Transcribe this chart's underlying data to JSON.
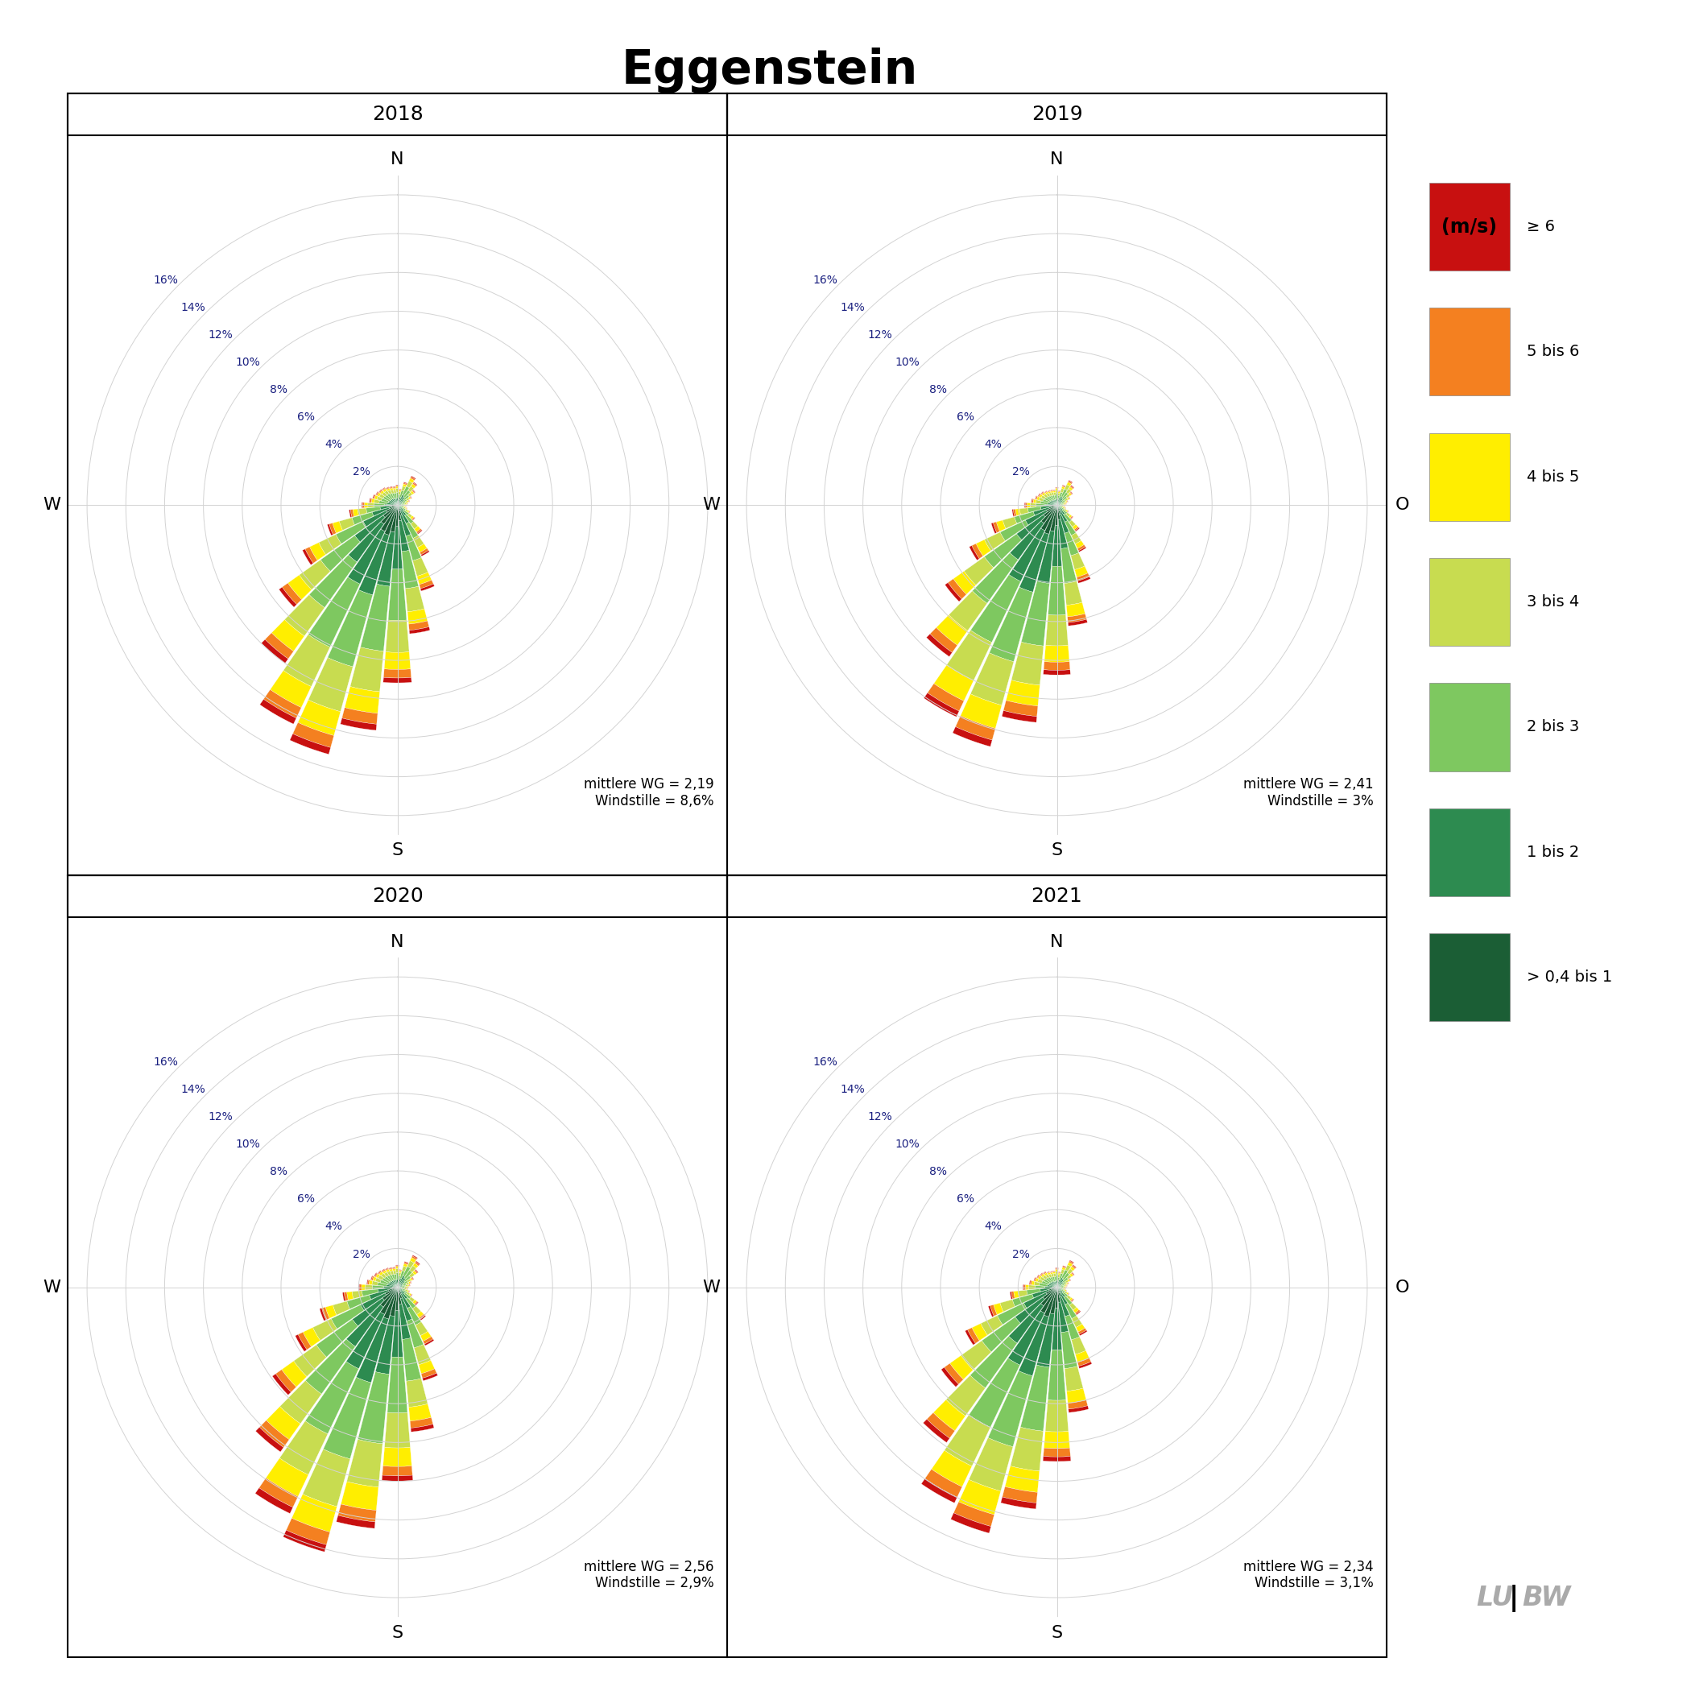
{
  "title": "Eggenstein",
  "years": [
    "2018",
    "2019",
    "2020",
    "2021"
  ],
  "stats": [
    {
      "mittlere_wg": "2,19",
      "windstille": "8,6%"
    },
    {
      "mittlere_wg": "2,41",
      "windstille": "3%"
    },
    {
      "mittlere_wg": "2,56",
      "windstille": "2,9%"
    },
    {
      "mittlere_wg": "2,34",
      "windstille": "3,1%"
    }
  ],
  "speed_colors": [
    "#1b5e35",
    "#2d8b50",
    "#7ec860",
    "#c8dc50",
    "#ffee00",
    "#f48020",
    "#c81010"
  ],
  "speed_labels": [
    "> 0,4 bis 1",
    "1 bis 2",
    "2 bis 3",
    "3 bis 4",
    "4 bis 5",
    "5 bis 6",
    "≥ 6"
  ],
  "r_ticks": [
    2,
    4,
    6,
    8,
    10,
    12,
    14,
    16
  ],
  "r_max": 17,
  "n_sectors": 36,
  "n_speed_bins": 7,
  "wind_data_2018": [
    [
      0.12,
      0.25,
      0.3,
      0.2,
      0.1,
      0.05,
      0.03
    ],
    [
      0.1,
      0.2,
      0.25,
      0.15,
      0.08,
      0.04,
      0.02
    ],
    [
      0.15,
      0.3,
      0.35,
      0.22,
      0.12,
      0.06,
      0.04
    ],
    [
      0.2,
      0.4,
      0.48,
      0.3,
      0.16,
      0.08,
      0.05
    ],
    [
      0.18,
      0.35,
      0.42,
      0.26,
      0.14,
      0.07,
      0.04
    ],
    [
      0.14,
      0.28,
      0.33,
      0.2,
      0.11,
      0.05,
      0.03
    ],
    [
      0.1,
      0.2,
      0.24,
      0.15,
      0.08,
      0.04,
      0.02
    ],
    [
      0.08,
      0.16,
      0.19,
      0.12,
      0.06,
      0.03,
      0.02
    ],
    [
      0.07,
      0.14,
      0.16,
      0.1,
      0.05,
      0.02,
      0.01
    ],
    [
      0.06,
      0.12,
      0.14,
      0.09,
      0.05,
      0.02,
      0.01
    ],
    [
      0.06,
      0.11,
      0.13,
      0.08,
      0.04,
      0.02,
      0.01
    ],
    [
      0.07,
      0.13,
      0.15,
      0.1,
      0.05,
      0.02,
      0.01
    ],
    [
      0.09,
      0.18,
      0.21,
      0.13,
      0.07,
      0.03,
      0.02
    ],
    [
      0.14,
      0.27,
      0.32,
      0.2,
      0.11,
      0.05,
      0.03
    ],
    [
      0.22,
      0.44,
      0.52,
      0.33,
      0.18,
      0.09,
      0.05
    ],
    [
      0.35,
      0.7,
      0.84,
      0.52,
      0.28,
      0.14,
      0.08
    ],
    [
      0.55,
      1.1,
      1.32,
      0.83,
      0.44,
      0.22,
      0.13
    ],
    [
      0.8,
      1.6,
      1.92,
      1.2,
      0.64,
      0.32,
      0.18
    ],
    [
      1.1,
      2.2,
      2.64,
      1.65,
      0.88,
      0.44,
      0.25
    ],
    [
      1.4,
      2.8,
      3.36,
      2.1,
      1.12,
      0.56,
      0.32
    ],
    [
      1.6,
      3.2,
      3.84,
      2.4,
      1.28,
      0.64,
      0.36
    ],
    [
      1.5,
      3.0,
      3.6,
      2.25,
      1.2,
      0.6,
      0.34
    ],
    [
      1.2,
      2.4,
      2.88,
      1.8,
      0.96,
      0.48,
      0.27
    ],
    [
      0.9,
      1.8,
      2.16,
      1.35,
      0.72,
      0.36,
      0.2
    ],
    [
      0.65,
      1.3,
      1.56,
      0.98,
      0.52,
      0.26,
      0.15
    ],
    [
      0.45,
      0.9,
      1.08,
      0.68,
      0.36,
      0.18,
      0.1
    ],
    [
      0.3,
      0.6,
      0.72,
      0.45,
      0.24,
      0.12,
      0.07
    ],
    [
      0.22,
      0.44,
      0.53,
      0.33,
      0.18,
      0.09,
      0.05
    ],
    [
      0.18,
      0.35,
      0.42,
      0.26,
      0.14,
      0.07,
      0.04
    ],
    [
      0.16,
      0.32,
      0.38,
      0.24,
      0.13,
      0.06,
      0.04
    ],
    [
      0.15,
      0.3,
      0.36,
      0.22,
      0.12,
      0.06,
      0.03
    ],
    [
      0.14,
      0.28,
      0.34,
      0.21,
      0.11,
      0.06,
      0.03
    ],
    [
      0.14,
      0.27,
      0.33,
      0.2,
      0.11,
      0.05,
      0.03
    ],
    [
      0.13,
      0.25,
      0.3,
      0.19,
      0.1,
      0.05,
      0.03
    ],
    [
      0.12,
      0.24,
      0.29,
      0.18,
      0.1,
      0.05,
      0.03
    ],
    [
      0.12,
      0.23,
      0.28,
      0.17,
      0.09,
      0.05,
      0.03
    ]
  ],
  "wind_data_2019": [
    [
      0.1,
      0.22,
      0.28,
      0.18,
      0.09,
      0.04,
      0.02
    ],
    [
      0.09,
      0.18,
      0.22,
      0.14,
      0.07,
      0.04,
      0.02
    ],
    [
      0.12,
      0.26,
      0.32,
      0.2,
      0.1,
      0.05,
      0.03
    ],
    [
      0.16,
      0.34,
      0.42,
      0.26,
      0.14,
      0.07,
      0.04
    ],
    [
      0.15,
      0.3,
      0.37,
      0.23,
      0.12,
      0.06,
      0.04
    ],
    [
      0.12,
      0.24,
      0.29,
      0.18,
      0.1,
      0.05,
      0.03
    ],
    [
      0.09,
      0.18,
      0.22,
      0.14,
      0.07,
      0.04,
      0.02
    ],
    [
      0.07,
      0.14,
      0.17,
      0.11,
      0.06,
      0.03,
      0.02
    ],
    [
      0.06,
      0.12,
      0.15,
      0.09,
      0.05,
      0.02,
      0.01
    ],
    [
      0.05,
      0.11,
      0.13,
      0.08,
      0.04,
      0.02,
      0.01
    ],
    [
      0.05,
      0.1,
      0.12,
      0.08,
      0.04,
      0.02,
      0.01
    ],
    [
      0.06,
      0.12,
      0.14,
      0.09,
      0.05,
      0.02,
      0.01
    ],
    [
      0.08,
      0.16,
      0.2,
      0.12,
      0.07,
      0.03,
      0.02
    ],
    [
      0.12,
      0.24,
      0.3,
      0.19,
      0.1,
      0.05,
      0.03
    ],
    [
      0.2,
      0.4,
      0.48,
      0.3,
      0.16,
      0.08,
      0.05
    ],
    [
      0.32,
      0.64,
      0.77,
      0.48,
      0.26,
      0.13,
      0.07
    ],
    [
      0.5,
      1.0,
      1.2,
      0.75,
      0.4,
      0.2,
      0.12
    ],
    [
      0.75,
      1.5,
      1.8,
      1.13,
      0.6,
      0.3,
      0.17
    ],
    [
      1.05,
      2.1,
      2.52,
      1.58,
      0.84,
      0.42,
      0.24
    ],
    [
      1.35,
      2.7,
      3.24,
      2.03,
      1.08,
      0.54,
      0.31
    ],
    [
      1.55,
      3.1,
      3.72,
      2.33,
      1.24,
      0.62,
      0.35
    ],
    [
      1.45,
      2.9,
      3.48,
      2.18,
      1.16,
      0.58,
      0.33
    ],
    [
      1.15,
      2.3,
      2.76,
      1.73,
      0.92,
      0.46,
      0.26
    ],
    [
      0.85,
      1.7,
      2.04,
      1.28,
      0.68,
      0.34,
      0.19
    ],
    [
      0.6,
      1.2,
      1.44,
      0.9,
      0.48,
      0.24,
      0.14
    ],
    [
      0.42,
      0.84,
      1.01,
      0.63,
      0.34,
      0.17,
      0.1
    ],
    [
      0.28,
      0.56,
      0.67,
      0.42,
      0.22,
      0.11,
      0.06
    ],
    [
      0.2,
      0.4,
      0.48,
      0.3,
      0.16,
      0.08,
      0.05
    ],
    [
      0.16,
      0.32,
      0.38,
      0.24,
      0.13,
      0.06,
      0.04
    ],
    [
      0.14,
      0.28,
      0.34,
      0.21,
      0.11,
      0.06,
      0.03
    ],
    [
      0.13,
      0.26,
      0.31,
      0.2,
      0.1,
      0.05,
      0.03
    ],
    [
      0.12,
      0.24,
      0.29,
      0.18,
      0.1,
      0.05,
      0.03
    ],
    [
      0.11,
      0.22,
      0.27,
      0.17,
      0.09,
      0.04,
      0.02
    ],
    [
      0.1,
      0.21,
      0.25,
      0.16,
      0.08,
      0.04,
      0.02
    ],
    [
      0.1,
      0.2,
      0.24,
      0.15,
      0.08,
      0.04,
      0.02
    ],
    [
      0.1,
      0.19,
      0.23,
      0.15,
      0.08,
      0.04,
      0.02
    ]
  ],
  "wind_data_2020": [
    [
      0.13,
      0.28,
      0.34,
      0.21,
      0.11,
      0.05,
      0.03
    ],
    [
      0.11,
      0.22,
      0.27,
      0.17,
      0.09,
      0.04,
      0.02
    ],
    [
      0.16,
      0.33,
      0.4,
      0.25,
      0.13,
      0.07,
      0.04
    ],
    [
      0.22,
      0.44,
      0.53,
      0.33,
      0.18,
      0.09,
      0.05
    ],
    [
      0.2,
      0.4,
      0.48,
      0.3,
      0.16,
      0.08,
      0.05
    ],
    [
      0.16,
      0.31,
      0.38,
      0.24,
      0.13,
      0.06,
      0.04
    ],
    [
      0.11,
      0.22,
      0.27,
      0.17,
      0.09,
      0.05,
      0.03
    ],
    [
      0.09,
      0.18,
      0.22,
      0.14,
      0.07,
      0.04,
      0.02
    ],
    [
      0.08,
      0.16,
      0.19,
      0.12,
      0.06,
      0.03,
      0.02
    ],
    [
      0.07,
      0.14,
      0.17,
      0.1,
      0.06,
      0.03,
      0.01
    ],
    [
      0.07,
      0.13,
      0.16,
      0.1,
      0.05,
      0.03,
      0.01
    ],
    [
      0.08,
      0.16,
      0.19,
      0.12,
      0.06,
      0.03,
      0.02
    ],
    [
      0.1,
      0.21,
      0.25,
      0.16,
      0.08,
      0.04,
      0.02
    ],
    [
      0.16,
      0.32,
      0.38,
      0.24,
      0.13,
      0.06,
      0.04
    ],
    [
      0.25,
      0.5,
      0.6,
      0.38,
      0.2,
      0.1,
      0.06
    ],
    [
      0.4,
      0.8,
      0.96,
      0.6,
      0.32,
      0.16,
      0.09
    ],
    [
      0.6,
      1.2,
      1.44,
      0.9,
      0.48,
      0.24,
      0.14
    ],
    [
      0.9,
      1.8,
      2.16,
      1.35,
      0.72,
      0.36,
      0.2
    ],
    [
      1.2,
      2.4,
      2.88,
      1.8,
      0.96,
      0.48,
      0.27
    ],
    [
      1.5,
      3.0,
      3.6,
      2.25,
      1.2,
      0.6,
      0.34
    ],
    [
      1.7,
      3.4,
      4.08,
      2.55,
      1.36,
      0.68,
      0.38
    ],
    [
      1.55,
      3.1,
      3.72,
      2.33,
      1.24,
      0.62,
      0.35
    ],
    [
      1.25,
      2.5,
      3.0,
      1.88,
      1.0,
      0.5,
      0.28
    ],
    [
      0.95,
      1.9,
      2.28,
      1.43,
      0.76,
      0.38,
      0.21
    ],
    [
      0.7,
      1.4,
      1.68,
      1.05,
      0.56,
      0.28,
      0.16
    ],
    [
      0.5,
      1.0,
      1.2,
      0.75,
      0.4,
      0.2,
      0.11
    ],
    [
      0.34,
      0.68,
      0.82,
      0.51,
      0.27,
      0.14,
      0.08
    ],
    [
      0.24,
      0.48,
      0.58,
      0.36,
      0.19,
      0.1,
      0.06
    ],
    [
      0.19,
      0.38,
      0.46,
      0.29,
      0.15,
      0.08,
      0.04
    ],
    [
      0.17,
      0.34,
      0.41,
      0.26,
      0.14,
      0.07,
      0.04
    ],
    [
      0.16,
      0.32,
      0.38,
      0.24,
      0.13,
      0.06,
      0.04
    ],
    [
      0.15,
      0.3,
      0.36,
      0.22,
      0.12,
      0.06,
      0.03
    ],
    [
      0.14,
      0.28,
      0.34,
      0.21,
      0.11,
      0.06,
      0.03
    ],
    [
      0.14,
      0.27,
      0.32,
      0.2,
      0.11,
      0.05,
      0.03
    ],
    [
      0.13,
      0.26,
      0.31,
      0.19,
      0.1,
      0.05,
      0.03
    ],
    [
      0.13,
      0.25,
      0.3,
      0.19,
      0.1,
      0.05,
      0.03
    ]
  ],
  "wind_data_2021": [
    [
      0.11,
      0.24,
      0.29,
      0.18,
      0.1,
      0.05,
      0.03
    ],
    [
      0.09,
      0.19,
      0.23,
      0.15,
      0.08,
      0.04,
      0.02
    ],
    [
      0.13,
      0.28,
      0.34,
      0.21,
      0.11,
      0.06,
      0.03
    ],
    [
      0.18,
      0.37,
      0.45,
      0.28,
      0.15,
      0.08,
      0.04
    ],
    [
      0.17,
      0.34,
      0.41,
      0.26,
      0.14,
      0.07,
      0.04
    ],
    [
      0.13,
      0.27,
      0.32,
      0.2,
      0.11,
      0.05,
      0.03
    ],
    [
      0.09,
      0.19,
      0.23,
      0.15,
      0.08,
      0.04,
      0.02
    ],
    [
      0.08,
      0.15,
      0.18,
      0.12,
      0.06,
      0.03,
      0.02
    ],
    [
      0.07,
      0.13,
      0.16,
      0.1,
      0.05,
      0.02,
      0.01
    ],
    [
      0.06,
      0.12,
      0.14,
      0.09,
      0.05,
      0.02,
      0.01
    ],
    [
      0.06,
      0.11,
      0.14,
      0.08,
      0.04,
      0.02,
      0.01
    ],
    [
      0.07,
      0.13,
      0.16,
      0.1,
      0.05,
      0.02,
      0.01
    ],
    [
      0.09,
      0.17,
      0.21,
      0.13,
      0.07,
      0.03,
      0.02
    ],
    [
      0.13,
      0.26,
      0.31,
      0.2,
      0.1,
      0.05,
      0.03
    ],
    [
      0.21,
      0.42,
      0.5,
      0.32,
      0.17,
      0.08,
      0.05
    ],
    [
      0.33,
      0.66,
      0.8,
      0.5,
      0.26,
      0.13,
      0.08
    ],
    [
      0.52,
      1.04,
      1.25,
      0.78,
      0.42,
      0.21,
      0.12
    ],
    [
      0.78,
      1.56,
      1.87,
      1.17,
      0.62,
      0.31,
      0.18
    ],
    [
      1.08,
      2.16,
      2.59,
      1.62,
      0.86,
      0.43,
      0.24
    ],
    [
      1.38,
      2.76,
      3.31,
      2.07,
      1.1,
      0.55,
      0.31
    ],
    [
      1.58,
      3.16,
      3.79,
      2.37,
      1.26,
      0.63,
      0.36
    ],
    [
      1.48,
      2.96,
      3.55,
      2.22,
      1.18,
      0.59,
      0.33
    ],
    [
      1.18,
      2.36,
      2.83,
      1.77,
      0.94,
      0.47,
      0.27
    ],
    [
      0.88,
      1.76,
      2.11,
      1.32,
      0.7,
      0.35,
      0.2
    ],
    [
      0.63,
      1.26,
      1.51,
      0.95,
      0.5,
      0.25,
      0.14
    ],
    [
      0.44,
      0.88,
      1.06,
      0.66,
      0.35,
      0.18,
      0.1
    ],
    [
      0.29,
      0.58,
      0.7,
      0.44,
      0.23,
      0.12,
      0.07
    ],
    [
      0.21,
      0.42,
      0.5,
      0.32,
      0.17,
      0.08,
      0.05
    ],
    [
      0.17,
      0.34,
      0.41,
      0.26,
      0.14,
      0.07,
      0.04
    ],
    [
      0.15,
      0.3,
      0.36,
      0.22,
      0.12,
      0.06,
      0.03
    ],
    [
      0.14,
      0.28,
      0.33,
      0.21,
      0.11,
      0.05,
      0.03
    ],
    [
      0.13,
      0.26,
      0.31,
      0.19,
      0.1,
      0.05,
      0.03
    ],
    [
      0.12,
      0.24,
      0.29,
      0.18,
      0.1,
      0.05,
      0.03
    ],
    [
      0.11,
      0.22,
      0.27,
      0.17,
      0.09,
      0.04,
      0.02
    ],
    [
      0.11,
      0.21,
      0.25,
      0.16,
      0.08,
      0.04,
      0.02
    ],
    [
      0.1,
      0.21,
      0.25,
      0.16,
      0.08,
      0.04,
      0.02
    ]
  ]
}
